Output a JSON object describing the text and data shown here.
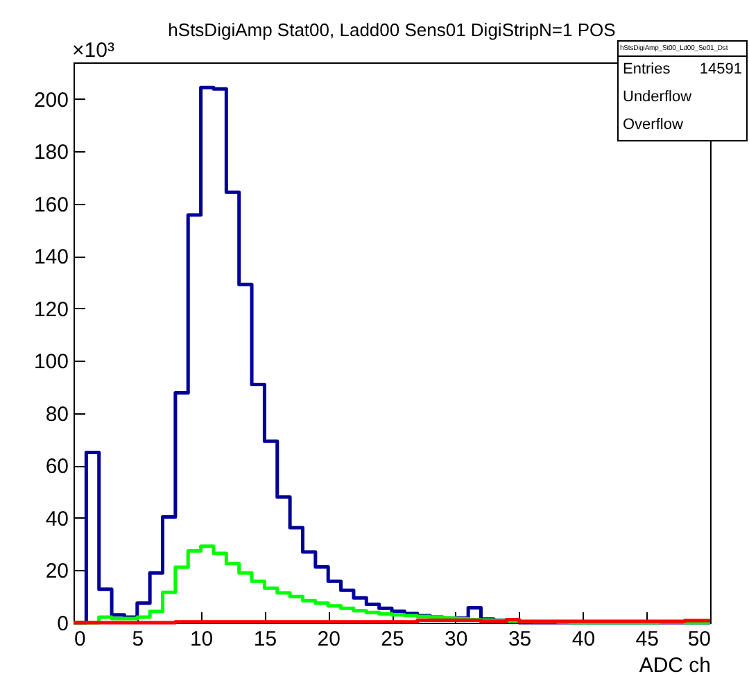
{
  "chart_data": {
    "type": "histogram",
    "title": "hStsDigiAmp Stat00, Ladd00 Sens01 DigiStripN=1 POS",
    "xlabel": "ADC ch",
    "annotations": [
      "×10³",
      "hStsDigiAmp_St00_Ld00_Se01_Dst",
      "Entries",
      "14591",
      "Underflow",
      "Overflow"
    ],
    "bins": [
      0,
      1,
      2,
      3,
      4,
      5,
      6,
      7,
      8,
      9,
      10,
      11,
      12,
      13,
      14,
      15,
      16,
      17,
      18,
      19,
      20,
      21,
      22,
      23,
      24,
      25,
      26,
      27,
      28,
      29,
      30,
      31,
      32,
      33,
      34,
      35,
      36,
      37,
      38,
      39,
      40,
      41,
      42,
      43,
      44,
      45,
      46,
      47,
      48,
      49,
      50
    ],
    "series": [
      {
        "color": "#000099",
        "values": [
          0,
          65,
          12.8,
          3,
          2.1,
          7.5,
          19,
          40.4,
          87.8,
          155.7,
          204.4,
          203.9,
          164.4,
          129.2,
          91,
          69.3,
          48,
          36.3,
          27,
          21.3,
          15.8,
          12.4,
          9.5,
          7,
          5.5,
          4.4,
          3.5,
          2.7,
          2.1,
          1.8,
          1.8,
          5.7,
          1.4,
          0.9,
          0.5,
          0,
          0,
          0,
          0,
          0,
          0,
          0,
          0,
          0,
          0,
          0,
          0,
          0,
          0,
          0
        ]
      },
      {
        "color": "#00ff00",
        "values": [
          0,
          0,
          2.1,
          1.6,
          1.6,
          2.1,
          4.3,
          11.6,
          21.2,
          27.4,
          29.2,
          26.5,
          22.6,
          19,
          15.8,
          13.2,
          11.4,
          10,
          8.4,
          7.5,
          6.4,
          5.5,
          4.6,
          3.9,
          3.4,
          3,
          2.7,
          2.4,
          2,
          1.8,
          1.5,
          1.2,
          1,
          0.8,
          0.6,
          0.4,
          0.3,
          0.3,
          0.2,
          0,
          0,
          0,
          0,
          0,
          0,
          0,
          0.2,
          0.2,
          0,
          0
        ]
      },
      {
        "color": "#ff0000",
        "values": [
          0,
          0,
          0,
          0,
          0,
          0,
          0,
          0,
          0.3,
          0.3,
          0.3,
          0.3,
          0.3,
          0.3,
          0.3,
          0.3,
          0.3,
          0.3,
          0.3,
          0.3,
          0.3,
          0.3,
          0.3,
          0.3,
          0.3,
          0.3,
          0.3,
          0.9,
          0.9,
          0.9,
          0.9,
          0.9,
          0.5,
          0.5,
          1.2,
          0.5,
          0.5,
          0.5,
          0.5,
          0.5,
          0.5,
          0.5,
          0.5,
          0.5,
          0.5,
          0.5,
          0.5,
          0.5,
          0.8,
          0.8
        ]
      }
    ],
    "xlim": [
      0,
      50
    ],
    "xticks": [
      0,
      5,
      10,
      15,
      20,
      25,
      30,
      35,
      40,
      45,
      50
    ],
    "ylim": [
      0,
      214
    ],
    "yticks": [
      0,
      20,
      40,
      60,
      80,
      100,
      120,
      140,
      160,
      180,
      200
    ],
    "grid": false
  }
}
